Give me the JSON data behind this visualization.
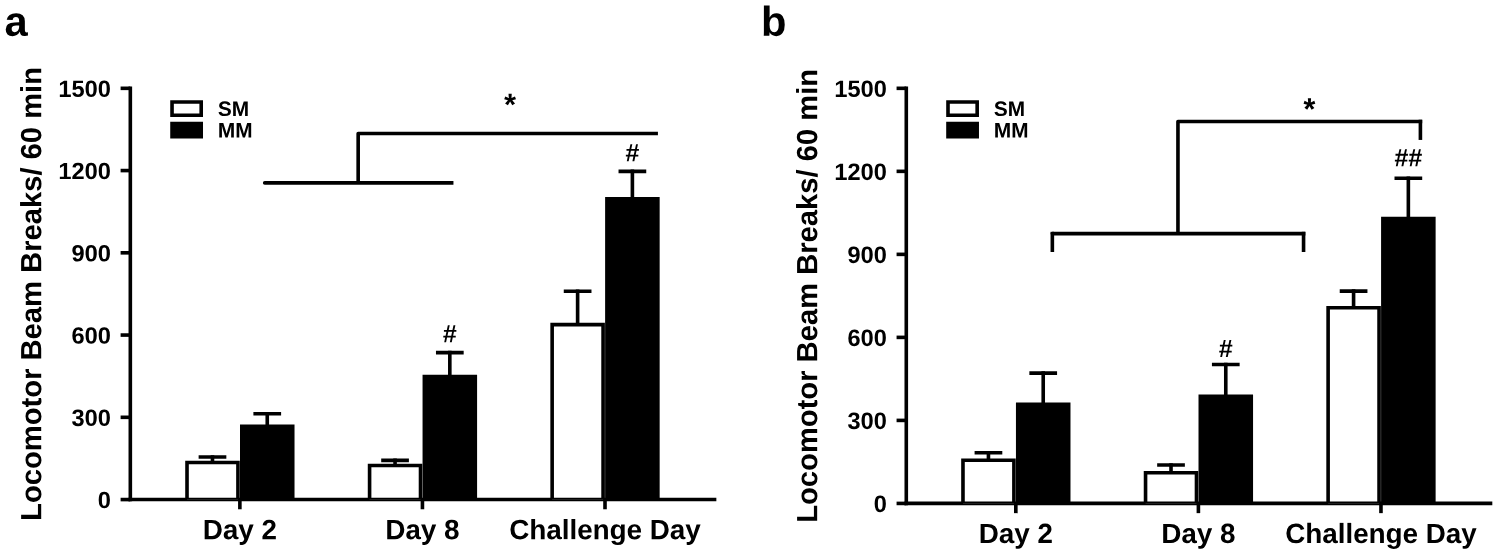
{
  "chart_data": [
    {
      "type": "bar",
      "title": "a",
      "ylabel": "Locomotor Beam Breaks/ 60 min",
      "categories": [
        "Day 2",
        "Day 8",
        "Challenge Day"
      ],
      "series": [
        {
          "name": "SM",
          "color": "#ffffff",
          "values": [
            135,
            124,
            638
          ],
          "errors": [
            [
              135,
              155
            ],
            [
              124,
              143
            ],
            [
              638,
              760
            ]
          ]
        },
        {
          "name": "MM",
          "color": "#000000",
          "values": [
            267,
            449,
            1097
          ],
          "errors": [
            [
              267,
              313
            ],
            [
              449,
              536
            ],
            [
              1097,
              1197
            ]
          ]
        }
      ],
      "ylim": [
        0,
        1500
      ],
      "yticks": [
        0,
        300,
        600,
        900,
        1200,
        1500
      ],
      "legend": "top left",
      "grid": false,
      "annotations": [
        "*",
        "#",
        "#"
      ]
    },
    {
      "type": "bar",
      "title": "b",
      "ylabel": "Locomotor Beam Breaks/ 60 min",
      "categories": [
        "Day 2",
        "Day 8",
        "Challenge Day"
      ],
      "series": [
        {
          "name": "SM",
          "color": "#ffffff",
          "values": [
            156,
            111,
            707
          ],
          "errors": [
            [
              156,
              183
            ],
            [
              111,
              139
            ],
            [
              707,
              767
            ]
          ]
        },
        {
          "name": "MM",
          "color": "#000000",
          "values": [
            358,
            387,
            1029
          ],
          "errors": [
            [
              358,
              471
            ],
            [
              387,
              502
            ],
            [
              1029,
              1175
            ]
          ]
        }
      ],
      "ylim": [
        0,
        1500
      ],
      "yticks": [
        0,
        300,
        600,
        900,
        1200,
        1500
      ],
      "legend": "top left",
      "grid": false,
      "annotations": [
        "*",
        "#",
        "##"
      ]
    }
  ]
}
